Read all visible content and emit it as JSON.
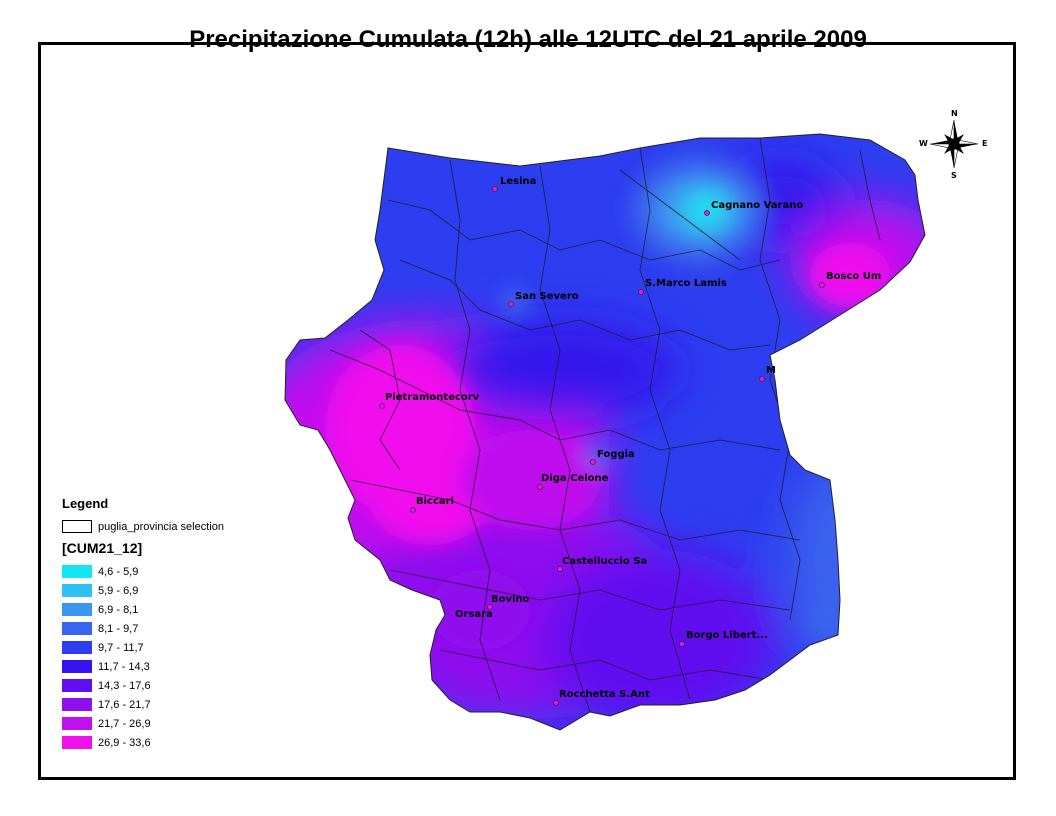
{
  "title": "Precipitazione Cumulata (12h) alle 12UTC del 21 aprile 2009",
  "compass": {
    "n": "N",
    "s": "S",
    "e": "E",
    "w": "W"
  },
  "legend": {
    "title": "Legend",
    "layer_label": "puglia_provincia selection",
    "field": "[CUM21_12]",
    "classes": [
      {
        "label": "4,6 - 5,9",
        "color": "#13e6f0"
      },
      {
        "label": "5,9 - 6,9",
        "color": "#2dc2f2"
      },
      {
        "label": "6,9 - 8,1",
        "color": "#3a97f0"
      },
      {
        "label": "8,1 - 9,7",
        "color": "#3a63ee"
      },
      {
        "label": "9,7 - 11,7",
        "color": "#2d3ef0"
      },
      {
        "label": "11,7 - 14,3",
        "color": "#3513ee"
      },
      {
        "label": "14,3 - 17,6",
        "color": "#6010f0"
      },
      {
        "label": "17,6 - 21,7",
        "color": "#8f10ee"
      },
      {
        "label": "21,7 - 26,9",
        "color": "#c010ee"
      },
      {
        "label": "26,9 - 33,6",
        "color": "#f010ee"
      }
    ]
  },
  "places": [
    {
      "name": "Lesina"
    },
    {
      "name": "Cagnano Varano"
    },
    {
      "name": "San Severo"
    },
    {
      "name": "S.Marco Lamis"
    },
    {
      "name": "Bosco Um"
    },
    {
      "name": "M"
    },
    {
      "name": "Pietramontecorv"
    },
    {
      "name": "Foggia"
    },
    {
      "name": "Diga Celone"
    },
    {
      "name": "Biccari"
    },
    {
      "name": "Castelluccio Sa"
    },
    {
      "name": "Bovino"
    },
    {
      "name": "Orsara"
    },
    {
      "name": "Borgo Libert..."
    },
    {
      "name": "Rocchetta S.Ant"
    }
  ]
}
